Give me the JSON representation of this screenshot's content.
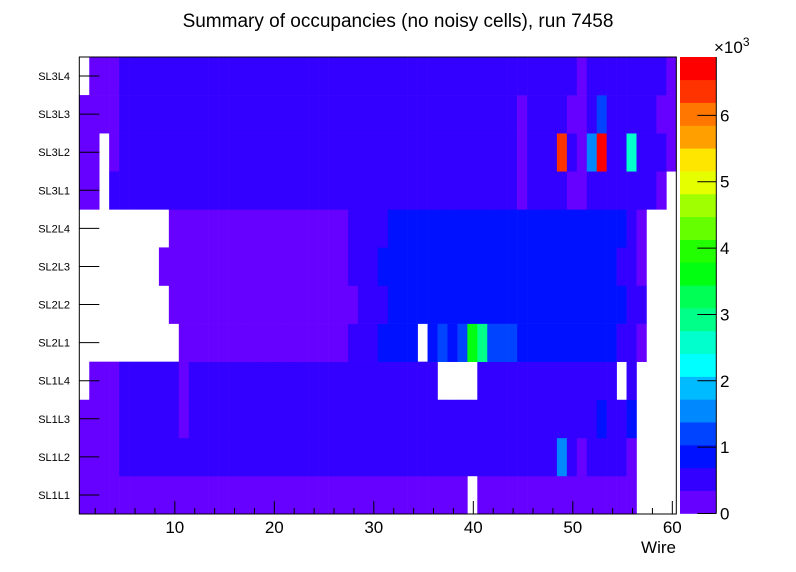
{
  "chart_data": {
    "type": "heatmap",
    "title": "Summary of occupancies (no noisy cells), run 7458",
    "xlabel": "Wire",
    "ylabel": "",
    "xlim": [
      0.4,
      60.4
    ],
    "x_ticks": [
      10,
      20,
      30,
      40,
      50,
      60
    ],
    "x_bins": 60,
    "y_categories": [
      "SL1L1",
      "SL1L2",
      "SL1L3",
      "SL1L4",
      "SL2L1",
      "SL2L2",
      "SL2L3",
      "SL2L4",
      "SL3L1",
      "SL3L2",
      "SL3L3",
      "SL3L4"
    ],
    "zlim": [
      0,
      6880
    ],
    "z_levels": 20,
    "z_multiplier_label": "×10",
    "z_multiplier_exp": "3",
    "z_ticks": [
      0,
      1,
      2,
      3,
      4,
      5,
      6
    ],
    "palette": [
      "#6600ff",
      "#3300ff",
      "#0011ff",
      "#0044ff",
      "#0088ff",
      "#00bbff",
      "#00ffff",
      "#00ffcc",
      "#00ff88",
      "#00ff55",
      "#00ff11",
      "#22ff00",
      "#66ff00",
      "#a0ff00",
      "#e6ff00",
      "#ffe600",
      "#ffa000",
      "#ff7700",
      "#ff3300",
      "#ff0000"
    ],
    "runs_note": "rows as [first_wire, last_wire, occupancy]; missing wires are empty",
    "rows": {
      "SL1L1": [
        [
          1,
          39,
          170
        ],
        [
          41,
          56,
          170
        ]
      ],
      "SL1L2": [
        [
          1,
          4,
          170
        ],
        [
          5,
          48,
          520
        ],
        [
          49,
          49,
          1550
        ],
        [
          50,
          50,
          520
        ],
        [
          51,
          51,
          170
        ],
        [
          52,
          55,
          520
        ],
        [
          56,
          56,
          170
        ]
      ],
      "SL1L3": [
        [
          1,
          4,
          170
        ],
        [
          5,
          10,
          520
        ],
        [
          11,
          11,
          170
        ],
        [
          12,
          52,
          520
        ],
        [
          53,
          53,
          860
        ],
        [
          54,
          55,
          520
        ],
        [
          56,
          56,
          860
        ]
      ],
      "SL1L4": [
        [
          2,
          4,
          170
        ],
        [
          5,
          10,
          520
        ],
        [
          11,
          11,
          170
        ],
        [
          12,
          36,
          520
        ],
        [
          41,
          54,
          520
        ],
        [
          56,
          56,
          520
        ]
      ],
      "SL2L1": [
        [
          11,
          27,
          170
        ],
        [
          28,
          30,
          520
        ],
        [
          31,
          34,
          860
        ],
        [
          36,
          36,
          860
        ],
        [
          37,
          37,
          1200
        ],
        [
          38,
          38,
          860
        ],
        [
          39,
          39,
          1200
        ],
        [
          40,
          40,
          3610
        ],
        [
          41,
          41,
          2920
        ],
        [
          42,
          44,
          1200
        ],
        [
          45,
          54,
          860
        ],
        [
          55,
          56,
          520
        ],
        [
          57,
          57,
          170
        ]
      ],
      "SL2L2": [
        [
          10,
          28,
          170
        ],
        [
          29,
          31,
          520
        ],
        [
          32,
          55,
          860
        ],
        [
          56,
          57,
          520
        ]
      ],
      "SL2L3": [
        [
          9,
          27,
          170
        ],
        [
          28,
          30,
          520
        ],
        [
          31,
          54,
          860
        ],
        [
          55,
          56,
          520
        ],
        [
          57,
          57,
          170
        ]
      ],
      "SL2L4": [
        [
          10,
          27,
          170
        ],
        [
          28,
          31,
          520
        ],
        [
          32,
          55,
          860
        ],
        [
          56,
          56,
          520
        ],
        [
          57,
          57,
          170
        ]
      ],
      "SL3L1": [
        [
          1,
          2,
          170
        ],
        [
          4,
          44,
          520
        ],
        [
          45,
          45,
          170
        ],
        [
          46,
          49,
          520
        ],
        [
          50,
          51,
          170
        ],
        [
          52,
          58,
          520
        ],
        [
          59,
          59,
          170
        ]
      ],
      "SL3L2": [
        [
          1,
          2,
          170
        ],
        [
          4,
          4,
          170
        ],
        [
          5,
          44,
          520
        ],
        [
          45,
          45,
          170
        ],
        [
          46,
          48,
          520
        ],
        [
          49,
          49,
          6360
        ],
        [
          50,
          50,
          520
        ],
        [
          51,
          51,
          170
        ],
        [
          52,
          52,
          1550
        ],
        [
          53,
          53,
          6710
        ],
        [
          54,
          55,
          520
        ],
        [
          56,
          56,
          2580
        ],
        [
          57,
          59,
          520
        ],
        [
          60,
          60,
          170
        ]
      ],
      "SL3L3": [
        [
          1,
          4,
          170
        ],
        [
          5,
          44,
          520
        ],
        [
          45,
          45,
          170
        ],
        [
          46,
          49,
          520
        ],
        [
          50,
          51,
          170
        ],
        [
          52,
          52,
          520
        ],
        [
          53,
          53,
          1200
        ],
        [
          54,
          58,
          520
        ],
        [
          59,
          60,
          170
        ]
      ],
      "SL3L4": [
        [
          2,
          4,
          170
        ],
        [
          5,
          50,
          520
        ],
        [
          51,
          51,
          170
        ],
        [
          52,
          59,
          520
        ],
        [
          60,
          60,
          170
        ]
      ]
    }
  }
}
